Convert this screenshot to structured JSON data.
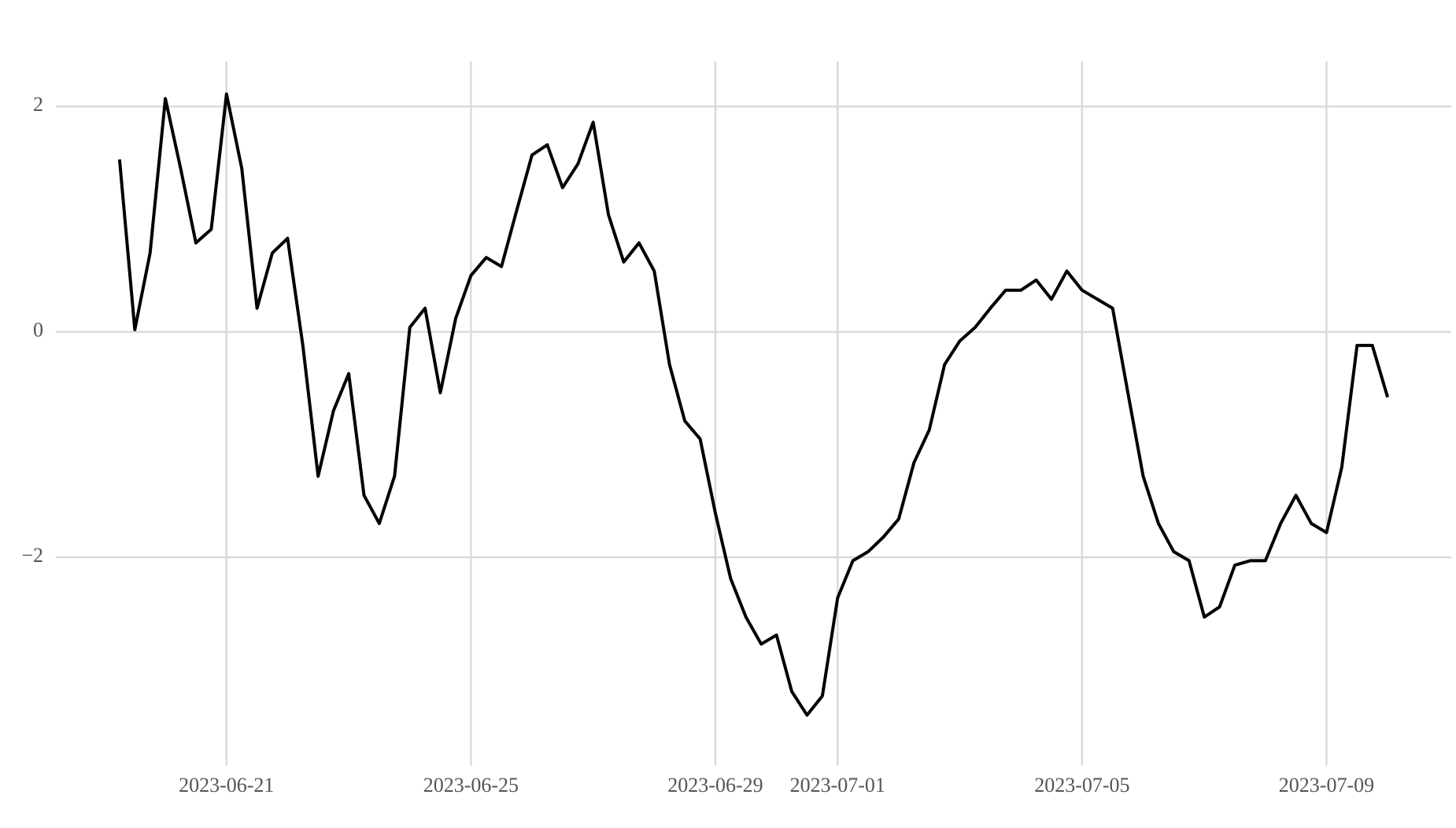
{
  "chart_data": {
    "type": "line",
    "color": "#000000",
    "grid": true,
    "x": [
      "2023-06-19 06:00",
      "2023-06-19 12:00",
      "2023-06-19 18:00",
      "2023-06-20 00:00",
      "2023-06-20 06:00",
      "2023-06-20 12:00",
      "2023-06-20 18:00",
      "2023-06-21 00:00",
      "2023-06-21 06:00",
      "2023-06-21 12:00",
      "2023-06-21 18:00",
      "2023-06-22 00:00",
      "2023-06-22 06:00",
      "2023-06-22 12:00",
      "2023-06-22 18:00",
      "2023-06-23 00:00",
      "2023-06-23 06:00",
      "2023-06-23 12:00",
      "2023-06-23 18:00",
      "2023-06-24 00:00",
      "2023-06-24 06:00",
      "2023-06-24 12:00",
      "2023-06-24 18:00",
      "2023-06-25 00:00",
      "2023-06-25 06:00",
      "2023-06-25 12:00",
      "2023-06-25 18:00",
      "2023-06-26 00:00",
      "2023-06-26 06:00",
      "2023-06-26 12:00",
      "2023-06-26 18:00",
      "2023-06-27 00:00",
      "2023-06-27 06:00",
      "2023-06-27 12:00",
      "2023-06-27 18:00",
      "2023-06-28 00:00",
      "2023-06-28 06:00",
      "2023-06-28 12:00",
      "2023-06-28 18:00",
      "2023-06-29 00:00",
      "2023-06-29 06:00",
      "2023-06-29 12:00",
      "2023-06-29 18:00",
      "2023-06-30 00:00",
      "2023-06-30 06:00",
      "2023-06-30 12:00",
      "2023-06-30 18:00",
      "2023-07-01 00:00",
      "2023-07-01 06:00",
      "2023-07-01 12:00",
      "2023-07-01 18:00",
      "2023-07-02 00:00",
      "2023-07-02 06:00",
      "2023-07-02 12:00",
      "2023-07-02 18:00",
      "2023-07-03 00:00",
      "2023-07-03 06:00",
      "2023-07-03 12:00",
      "2023-07-03 18:00",
      "2023-07-04 00:00",
      "2023-07-04 06:00",
      "2023-07-04 12:00",
      "2023-07-04 18:00",
      "2023-07-05 00:00",
      "2023-07-05 06:00",
      "2023-07-05 12:00",
      "2023-07-05 18:00",
      "2023-07-06 00:00",
      "2023-07-06 06:00",
      "2023-07-06 12:00",
      "2023-07-06 18:00",
      "2023-07-07 00:00",
      "2023-07-07 06:00",
      "2023-07-07 12:00",
      "2023-07-07 18:00",
      "2023-07-08 00:00",
      "2023-07-08 06:00",
      "2023-07-08 12:00",
      "2023-07-08 18:00",
      "2023-07-09 00:00",
      "2023-07-09 06:00",
      "2023-07-09 12:00",
      "2023-07-09 18:00",
      "2023-07-10 00:00"
    ],
    "values": [
      1.53,
      0.02,
      0.7,
      2.07,
      1.45,
      0.79,
      0.91,
      2.11,
      1.45,
      0.21,
      0.7,
      0.83,
      -0.12,
      -1.28,
      -0.7,
      -0.37,
      -1.45,
      -1.7,
      -1.28,
      0.04,
      0.21,
      -0.54,
      0.12,
      0.5,
      0.66,
      0.58,
      1.08,
      1.57,
      1.66,
      1.28,
      1.49,
      1.86,
      1.04,
      0.62,
      0.79,
      0.54,
      -0.29,
      -0.79,
      -0.95,
      -1.61,
      -2.19,
      -2.53,
      -2.77,
      -2.69,
      -3.19,
      -3.4,
      -3.23,
      -2.36,
      -2.03,
      -1.95,
      -1.82,
      -1.66,
      -1.16,
      -0.87,
      -0.29,
      -0.08,
      0.04,
      0.21,
      0.37,
      0.37,
      0.46,
      0.29,
      0.54,
      0.37,
      0.29,
      0.21,
      -0.54,
      -1.28,
      -1.7,
      -1.95,
      -2.03,
      -2.53,
      -2.44,
      -2.07,
      -2.03,
      -2.03,
      -1.7,
      -1.45,
      -1.7,
      -1.78,
      -1.2,
      -0.12,
      -0.12,
      -0.58
    ],
    "xlim": [
      "2023-06-18 05:00",
      "2023-07-11 01:00"
    ],
    "xticks": [
      "2023-06-21",
      "2023-06-25",
      "2023-06-29",
      "2023-07-01",
      "2023-07-05",
      "2023-07-09"
    ],
    "ylim": [
      -3.85,
      2.4
    ],
    "yticks": [
      {
        "value": -2,
        "label": "−2"
      },
      0,
      2
    ]
  }
}
